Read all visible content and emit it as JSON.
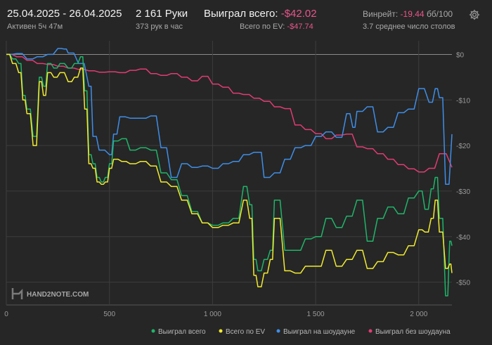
{
  "header": {
    "date_range": "25.04.2025 - 26.04.2025",
    "active_time": "Активен 5ч 47м",
    "hands": "2 161 Руки",
    "hands_per_hour": "373 рук в час",
    "won_total_label": "Выиграл всего:",
    "won_total_value": "-$42.02",
    "ev_total_label": "Всего по EV:",
    "ev_total_value": "-$47.74",
    "winrate_label": "Винрейт:",
    "winrate_value": "-19.44",
    "winrate_unit": "бб/100",
    "avg_tables": "3.7 среднее число столов"
  },
  "watermark": "HAND2NOTE.COM",
  "colors": {
    "background": "#262626",
    "won_total": "#1fb56a",
    "ev": "#f1eb2f",
    "showdown": "#3e8ee8",
    "non_showdown": "#e23b72",
    "negative_text": "#e8558a"
  },
  "chart_data": {
    "type": "line",
    "xlim": [
      0,
      2161
    ],
    "ylim": [
      -55,
      3
    ],
    "x_ticks": [
      {
        "v": 0,
        "label": "0"
      },
      {
        "v": 500,
        "label": "500"
      },
      {
        "v": 1000,
        "label": "1 000"
      },
      {
        "v": 1500,
        "label": "1 500"
      },
      {
        "v": 2000,
        "label": "2 000"
      }
    ],
    "y_ticks": [
      {
        "v": 0,
        "label": "$0"
      },
      {
        "v": -10,
        "label": "-$10"
      },
      {
        "v": -20,
        "label": "-$20"
      },
      {
        "v": -30,
        "label": "-$30"
      },
      {
        "v": -40,
        "label": "-$40"
      },
      {
        "v": -50,
        "label": "-$50"
      }
    ],
    "grid": true,
    "legend_position": "bottom-right",
    "series": [
      {
        "name": "Выиграл без шоудауна",
        "color": "#e23b72",
        "x": [
          0,
          50,
          100,
          150,
          200,
          250,
          300,
          350,
          400,
          450,
          500,
          550,
          600,
          650,
          700,
          750,
          800,
          850,
          900,
          950,
          1000,
          1050,
          1100,
          1150,
          1200,
          1250,
          1300,
          1350,
          1400,
          1450,
          1500,
          1550,
          1600,
          1650,
          1700,
          1750,
          1800,
          1850,
          1900,
          1950,
          2000,
          2050,
          2100,
          2161
        ],
        "y": [
          0,
          -0.5,
          -1.3,
          -2,
          -2.2,
          -2.6,
          -3,
          -3.3,
          -3.6,
          -3.9,
          -3.8,
          -4,
          -3.5,
          -3.2,
          -4.2,
          -4.6,
          -4.2,
          -5,
          -5.8,
          -4.8,
          -6.5,
          -7.2,
          -8.5,
          -8.8,
          -9.6,
          -10.3,
          -11.5,
          -11.9,
          -15.5,
          -16.5,
          -17.4,
          -18.5,
          -17.7,
          -17.5,
          -20.3,
          -20.7,
          -21.8,
          -23,
          -24.2,
          -25.1,
          -25.8,
          -25,
          -21.8,
          -24.8
        ]
      },
      {
        "name": "Выиграл на шоудауне",
        "color": "#3e8ee8",
        "x": [
          0,
          50,
          100,
          150,
          200,
          250,
          280,
          300,
          350,
          400,
          420,
          450,
          500,
          520,
          550,
          600,
          650,
          700,
          750,
          800,
          850,
          900,
          950,
          1000,
          1050,
          1100,
          1150,
          1200,
          1220,
          1250,
          1300,
          1350,
          1400,
          1450,
          1500,
          1550,
          1600,
          1650,
          1680,
          1700,
          1750,
          1800,
          1850,
          1900,
          1950,
          2000,
          2050,
          2080,
          2100,
          2130,
          2161
        ],
        "y": [
          0,
          0.2,
          -1,
          -0.5,
          0,
          1.3,
          1.2,
          0.3,
          -2,
          -7,
          -18,
          -21,
          -22,
          -17.5,
          -13.7,
          -14,
          -14,
          -13.5,
          -20.5,
          -27,
          -24,
          -24.8,
          -24.5,
          -25,
          -24,
          -23.5,
          -22,
          -21.5,
          -21.5,
          -27,
          -26,
          -23,
          -20.5,
          -20,
          -18,
          -17,
          -18.2,
          -13,
          -16,
          -12.5,
          -11.5,
          -17,
          -16,
          -12.8,
          -12,
          -7.5,
          -10.5,
          -7.5,
          -9.5,
          -28.5,
          -17.5
        ]
      },
      {
        "name": "Выиграл всего",
        "color": "#1fb56a",
        "x": [
          0,
          30,
          60,
          80,
          100,
          130,
          160,
          180,
          200,
          230,
          260,
          300,
          330,
          360,
          380,
          400,
          420,
          440,
          460,
          480,
          500,
          520,
          560,
          600,
          650,
          700,
          750,
          800,
          850,
          900,
          950,
          1000,
          1050,
          1100,
          1150,
          1180,
          1200,
          1220,
          1250,
          1280,
          1300,
          1350,
          1400,
          1450,
          1500,
          1550,
          1600,
          1650,
          1700,
          1750,
          1800,
          1850,
          1900,
          1950,
          2000,
          2030,
          2060,
          2080,
          2100,
          2130,
          2150,
          2161
        ],
        "y": [
          0,
          -1,
          -2,
          -9,
          -12,
          -18,
          -5,
          -7,
          -2,
          -3,
          -2,
          -3,
          -2,
          -0.5,
          -8,
          -22,
          -24,
          -27,
          -28,
          -27,
          -24,
          -19,
          -18.5,
          -21,
          -20.5,
          -21,
          -26,
          -27.5,
          -31,
          -34.5,
          -37,
          -37.5,
          -37,
          -36,
          -29,
          -33,
          -45,
          -47.5,
          -45,
          -43,
          -32,
          -43,
          -43,
          -40.5,
          -40,
          -36,
          -38,
          -35.5,
          -32,
          -41,
          -36,
          -33.5,
          -35,
          -31.5,
          -30,
          -34,
          -29.5,
          -27,
          -36,
          -53,
          -41,
          -42
        ]
      },
      {
        "name": "Всего по EV",
        "color": "#f1eb2f",
        "x": [
          0,
          30,
          60,
          80,
          100,
          130,
          160,
          180,
          200,
          230,
          260,
          300,
          330,
          360,
          380,
          400,
          420,
          440,
          460,
          480,
          500,
          520,
          560,
          600,
          650,
          700,
          750,
          800,
          850,
          900,
          950,
          1000,
          1050,
          1100,
          1150,
          1180,
          1200,
          1220,
          1250,
          1280,
          1300,
          1350,
          1400,
          1450,
          1500,
          1550,
          1600,
          1650,
          1700,
          1750,
          1800,
          1850,
          1900,
          1950,
          2000,
          2030,
          2060,
          2080,
          2100,
          2130,
          2150,
          2161
        ],
        "y": [
          0,
          -2,
          -4,
          -10,
          -13,
          -20,
          -6,
          -9,
          -4,
          -5,
          -4,
          -6,
          -5,
          -3,
          -12,
          -24,
          -25,
          -28,
          -28.5,
          -28,
          -25,
          -23,
          -23.5,
          -24,
          -23.5,
          -24.5,
          -28,
          -29,
          -32,
          -35,
          -37,
          -38,
          -37.5,
          -37,
          -32,
          -36,
          -48.5,
          -51,
          -48,
          -45,
          -36,
          -47.5,
          -48,
          -46.5,
          -46.5,
          -43,
          -46.5,
          -45,
          -43,
          -47,
          -45.5,
          -43.5,
          -44,
          -42,
          -38.5,
          -39,
          -36,
          -32,
          -39,
          -47,
          -46,
          -48
        ]
      }
    ]
  }
}
